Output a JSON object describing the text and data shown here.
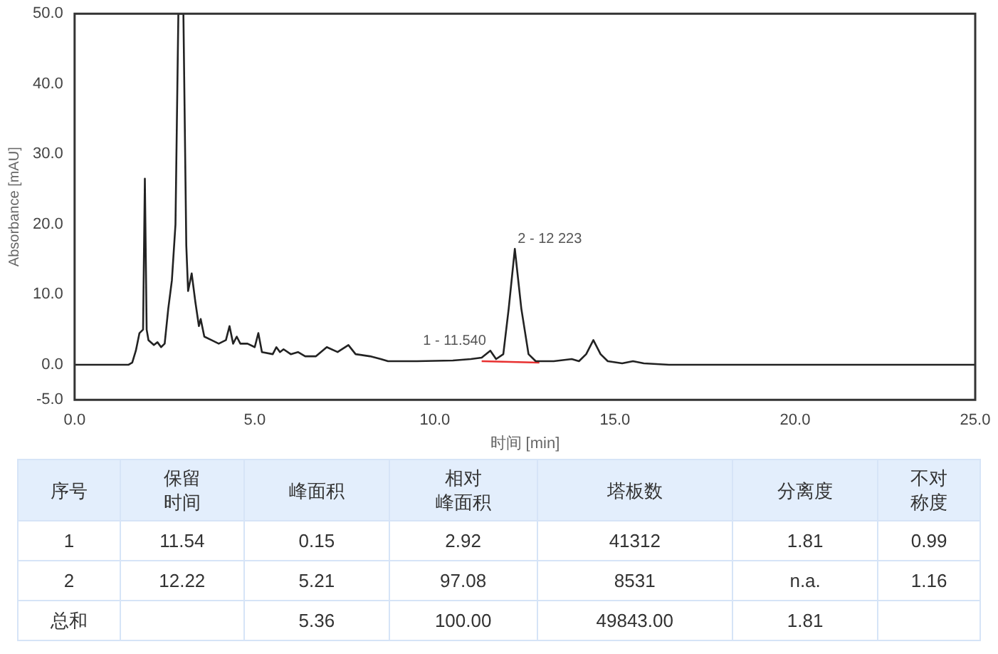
{
  "chart_data": [
    {
      "type": "line",
      "xlabel": "时间 [min]",
      "ylabel": "Absorbance [mAU]",
      "xlim": [
        0,
        25
      ],
      "ylim": [
        -5,
        50
      ],
      "xticks": [
        {
          "value": 0,
          "label": "0.0"
        },
        {
          "value": 5,
          "label": "5.0"
        },
        {
          "value": 10,
          "label": "10.0"
        },
        {
          "value": 15,
          "label": "15.0"
        },
        {
          "value": 20,
          "label": "20.0"
        },
        {
          "value": 25,
          "label": "25.0"
        }
      ],
      "yticks": [
        {
          "value": -5,
          "label": "-5.0"
        },
        {
          "value": 0,
          "label": "0.0"
        },
        {
          "value": 10,
          "label": "10.0"
        },
        {
          "value": 20,
          "label": "20.0"
        },
        {
          "value": 30,
          "label": "30.0"
        },
        {
          "value": 40,
          "label": "40.0"
        },
        {
          "value": 50,
          "label": "50.0"
        }
      ],
      "grid": false,
      "legend": false,
      "marker": "none",
      "series": [
        {
          "color": "#222222",
          "x": [
            0,
            1.5,
            1.6,
            1.7,
            1.8,
            1.9,
            1.95,
            2.0,
            2.05,
            2.2,
            2.3,
            2.4,
            2.5,
            2.6,
            2.7,
            2.8,
            2.88,
            3.02,
            3.1,
            3.15,
            3.25,
            3.35,
            3.45,
            3.5,
            3.6,
            3.8,
            4.0,
            4.2,
            4.3,
            4.4,
            4.5,
            4.6,
            4.8,
            5.0,
            5.1,
            5.2,
            5.5,
            5.6,
            5.7,
            5.8,
            6.0,
            6.2,
            6.4,
            6.7,
            7.0,
            7.3,
            7.6,
            7.8,
            8.2,
            8.5,
            8.7,
            9.5,
            10.5,
            11.0,
            11.3,
            11.54,
            11.7,
            11.9,
            12.05,
            12.22,
            12.4,
            12.6,
            12.8,
            13.3,
            13.8,
            14.0,
            14.2,
            14.4,
            14.6,
            14.8,
            15.2,
            15.5,
            15.8,
            16.5,
            25
          ],
          "values": [
            0,
            0,
            0.3,
            2,
            4.5,
            5,
            26.5,
            5,
            3.5,
            2.8,
            3.2,
            2.5,
            3,
            8,
            12,
            20,
            50,
            50,
            17,
            10.5,
            13,
            9,
            5.5,
            6.5,
            4,
            3.5,
            3,
            3.5,
            5.5,
            3,
            4,
            3,
            3,
            2.5,
            4.5,
            1.8,
            1.5,
            2.5,
            1.8,
            2.2,
            1.5,
            1.8,
            1.2,
            1.2,
            2.5,
            1.8,
            2.8,
            1.5,
            1.2,
            0.8,
            0.5,
            0.5,
            0.6,
            0.8,
            1,
            2,
            0.8,
            1.5,
            8,
            16.5,
            8,
            1.5,
            0.5,
            0.5,
            0.8,
            0.5,
            1.5,
            3.5,
            1.5,
            0.5,
            0.2,
            0.5,
            0.2,
            0,
            0
          ]
        },
        {
          "color": "#e83030",
          "x": [
            11.3,
            12.9
          ],
          "values": [
            0.5,
            0.3
          ]
        }
      ],
      "annotations": [
        {
          "text": "2 - 12 223",
          "x": 12.22,
          "y": 16.5
        },
        {
          "text": "1 - 11.540",
          "x": 11.54,
          "y": 2
        }
      ]
    },
    {
      "type": "other",
      "categories": [
        "序号",
        "保留时间",
        "峰面积",
        "相对峰面积",
        "塔板数",
        "分离度",
        "不对称度"
      ],
      "cell_labels": [
        [
          "1",
          "11.54",
          "0.15",
          "2.92",
          "41312",
          "1.81",
          "0.99"
        ],
        [
          "2",
          "12.22",
          "5.21",
          "97.08",
          "8531",
          "n.a.",
          "1.16"
        ],
        [
          "总和",
          null,
          "5.36",
          "100.00",
          "49843.00",
          "1.81",
          null
        ]
      ]
    }
  ]
}
